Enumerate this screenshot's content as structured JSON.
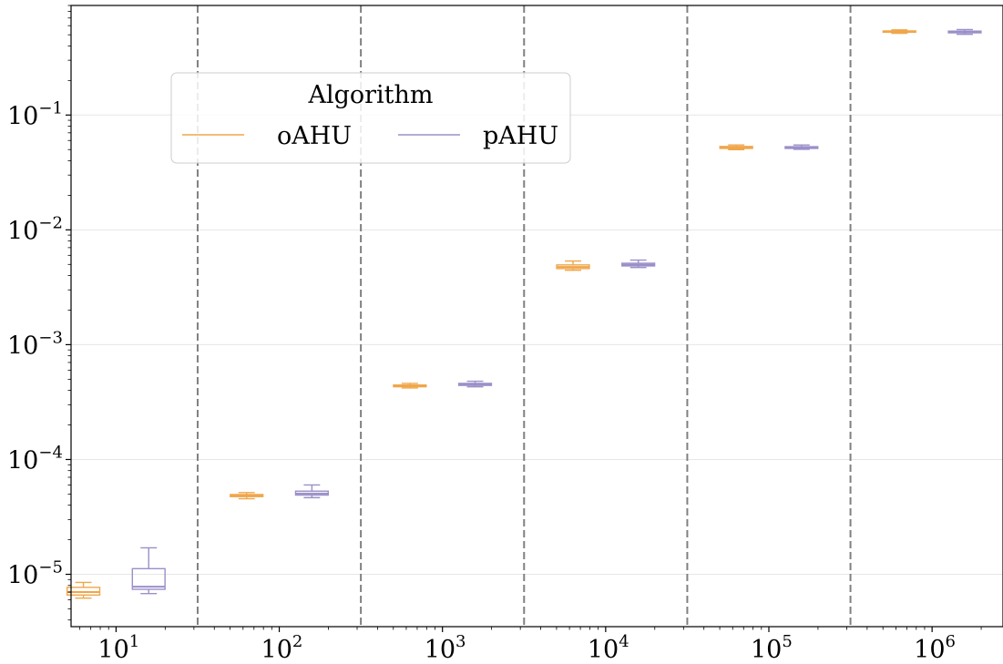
{
  "chart_data": {
    "type": "box",
    "title": "",
    "xlabel": "",
    "ylabel": "",
    "xscale": "log",
    "yscale": "log",
    "ylim": [
      3.5e-06,
      0.9
    ],
    "grid": "horizontal",
    "x_tick_labels": [
      {
        "base": "10",
        "exp": "1"
      },
      {
        "base": "10",
        "exp": "2"
      },
      {
        "base": "10",
        "exp": "3"
      },
      {
        "base": "10",
        "exp": "4"
      },
      {
        "base": "10",
        "exp": "5"
      },
      {
        "base": "10",
        "exp": "6"
      }
    ],
    "y_tick_labels": [
      {
        "base": "10",
        "exp": "−5",
        "value": 1e-05
      },
      {
        "base": "10",
        "exp": "−4",
        "value": 0.0001
      },
      {
        "base": "10",
        "exp": "−3",
        "value": 0.001
      },
      {
        "base": "10",
        "exp": "−2",
        "value": 0.01
      },
      {
        "base": "10",
        "exp": "−1",
        "value": 0.1
      }
    ],
    "legend": {
      "title": "Algorithm",
      "placement": "upper-left",
      "entries": [
        "oAHU",
        "pAHU"
      ]
    },
    "series": [
      {
        "name": "oAHU",
        "color": "#f0a64a",
        "boxes": [
          {
            "x": 10,
            "whisker_low": 6.2e-06,
            "q1": 6.6e-06,
            "median": 7e-06,
            "q3": 7.7e-06,
            "whisker_high": 8.5e-06
          },
          {
            "x": 100,
            "whisker_low": 4.55e-05,
            "q1": 4.75e-05,
            "median": 4.85e-05,
            "q3": 4.95e-05,
            "whisker_high": 5.15e-05
          },
          {
            "x": 1000,
            "whisker_low": 0.00042,
            "q1": 0.00043,
            "median": 0.000438,
            "q3": 0.000445,
            "whisker_high": 0.00046
          },
          {
            "x": 10000,
            "whisker_low": 0.00445,
            "q1": 0.0046,
            "median": 0.00475,
            "q3": 0.00495,
            "whisker_high": 0.00535
          },
          {
            "x": 100000,
            "whisker_low": 0.05,
            "q1": 0.0512,
            "median": 0.0522,
            "q3": 0.0532,
            "whisker_high": 0.0548
          },
          {
            "x": 1000000,
            "whisker_low": 0.515,
            "q1": 0.526,
            "median": 0.533,
            "q3": 0.54,
            "whisker_high": 0.552
          }
        ]
      },
      {
        "name": "pAHU",
        "color": "#9b8fc9",
        "boxes": [
          {
            "x": 10,
            "whisker_low": 6.8e-06,
            "q1": 7.4e-06,
            "median": 7.8e-06,
            "q3": 1.12e-05,
            "whisker_high": 1.7e-05
          },
          {
            "x": 100,
            "whisker_low": 4.65e-05,
            "q1": 4.9e-05,
            "median": 5.05e-05,
            "q3": 5.3e-05,
            "whisker_high": 6e-05
          },
          {
            "x": 1000,
            "whisker_low": 0.00043,
            "q1": 0.000442,
            "median": 0.00045,
            "q3": 0.00046,
            "whisker_high": 0.00048
          },
          {
            "x": 10000,
            "whisker_low": 0.0047,
            "q1": 0.00485,
            "median": 0.00497,
            "q3": 0.00512,
            "whisker_high": 0.00545
          },
          {
            "x": 100000,
            "whisker_low": 0.0503,
            "q1": 0.0512,
            "median": 0.0521,
            "q3": 0.053,
            "whisker_high": 0.0548
          },
          {
            "x": 1000000,
            "whisker_low": 0.505,
            "q1": 0.52,
            "median": 0.528,
            "q3": 0.538,
            "whisker_high": 0.555
          }
        ]
      }
    ],
    "separator_color": "#808080",
    "grid_color": "#e6e6e6"
  }
}
